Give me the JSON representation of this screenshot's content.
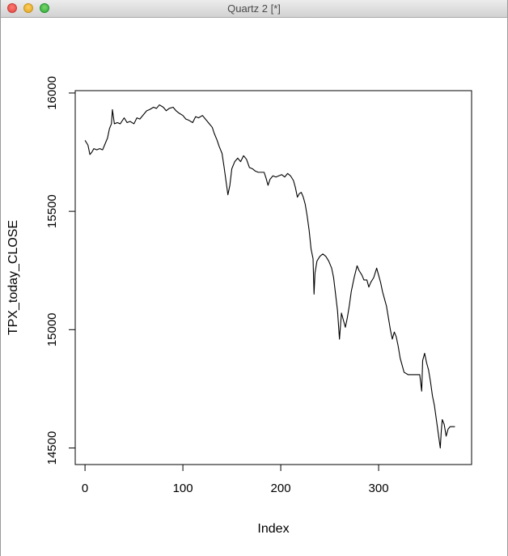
{
  "window": {
    "title": "Quartz 2 [*]"
  },
  "chart_data": {
    "type": "line",
    "xlabel": "Index",
    "ylabel": "TPX_today_CLOSE",
    "xlim": [
      -10,
      395
    ],
    "ylim": [
      14430,
      16010
    ],
    "x_ticks": [
      0,
      100,
      200,
      300
    ],
    "y_ticks": [
      14500,
      15000,
      15500,
      16000
    ],
    "grid": false,
    "series": [
      {
        "points": [
          [
            0,
            15800
          ],
          [
            3,
            15780
          ],
          [
            5,
            15740
          ],
          [
            7,
            15750
          ],
          [
            9,
            15765
          ],
          [
            12,
            15760
          ],
          [
            15,
            15765
          ],
          [
            18,
            15760
          ],
          [
            20,
            15780
          ],
          [
            23,
            15810
          ],
          [
            25,
            15850
          ],
          [
            27,
            15870
          ],
          [
            28,
            15930
          ],
          [
            30,
            15870
          ],
          [
            33,
            15875
          ],
          [
            36,
            15870
          ],
          [
            40,
            15895
          ],
          [
            43,
            15875
          ],
          [
            46,
            15880
          ],
          [
            50,
            15870
          ],
          [
            53,
            15895
          ],
          [
            56,
            15890
          ],
          [
            60,
            15910
          ],
          [
            63,
            15925
          ],
          [
            66,
            15930
          ],
          [
            70,
            15940
          ],
          [
            73,
            15935
          ],
          [
            76,
            15950
          ],
          [
            80,
            15940
          ],
          [
            83,
            15925
          ],
          [
            86,
            15935
          ],
          [
            90,
            15940
          ],
          [
            93,
            15925
          ],
          [
            96,
            15915
          ],
          [
            100,
            15905
          ],
          [
            103,
            15890
          ],
          [
            106,
            15885
          ],
          [
            110,
            15875
          ],
          [
            113,
            15900
          ],
          [
            116,
            15895
          ],
          [
            120,
            15905
          ],
          [
            123,
            15890
          ],
          [
            126,
            15875
          ],
          [
            130,
            15855
          ],
          [
            132,
            15830
          ],
          [
            135,
            15800
          ],
          [
            137,
            15775
          ],
          [
            140,
            15745
          ],
          [
            142,
            15690
          ],
          [
            144,
            15630
          ],
          [
            146,
            15570
          ],
          [
            148,
            15610
          ],
          [
            150,
            15680
          ],
          [
            153,
            15710
          ],
          [
            156,
            15725
          ],
          [
            159,
            15710
          ],
          [
            162,
            15735
          ],
          [
            165,
            15720
          ],
          [
            168,
            15685
          ],
          [
            171,
            15680
          ],
          [
            174,
            15670
          ],
          [
            177,
            15665
          ],
          [
            180,
            15665
          ],
          [
            183,
            15665
          ],
          [
            185,
            15640
          ],
          [
            187,
            15610
          ],
          [
            189,
            15635
          ],
          [
            192,
            15650
          ],
          [
            195,
            15645
          ],
          [
            198,
            15650
          ],
          [
            201,
            15655
          ],
          [
            204,
            15645
          ],
          [
            207,
            15660
          ],
          [
            210,
            15650
          ],
          [
            213,
            15630
          ],
          [
            215,
            15600
          ],
          [
            217,
            15560
          ],
          [
            219,
            15575
          ],
          [
            221,
            15580
          ],
          [
            223,
            15560
          ],
          [
            225,
            15530
          ],
          [
            227,
            15480
          ],
          [
            229,
            15420
          ],
          [
            231,
            15340
          ],
          [
            233,
            15300
          ],
          [
            234,
            15150
          ],
          [
            235,
            15240
          ],
          [
            237,
            15290
          ],
          [
            240,
            15310
          ],
          [
            243,
            15320
          ],
          [
            246,
            15310
          ],
          [
            249,
            15290
          ],
          [
            252,
            15260
          ],
          [
            254,
            15220
          ],
          [
            256,
            15150
          ],
          [
            258,
            15080
          ],
          [
            260,
            14960
          ],
          [
            262,
            15070
          ],
          [
            264,
            15040
          ],
          [
            266,
            15010
          ],
          [
            268,
            15050
          ],
          [
            270,
            15100
          ],
          [
            272,
            15160
          ],
          [
            275,
            15220
          ],
          [
            278,
            15270
          ],
          [
            280,
            15250
          ],
          [
            283,
            15230
          ],
          [
            285,
            15210
          ],
          [
            288,
            15210
          ],
          [
            290,
            15180
          ],
          [
            292,
            15200
          ],
          [
            295,
            15220
          ],
          [
            298,
            15260
          ],
          [
            300,
            15230
          ],
          [
            302,
            15200
          ],
          [
            304,
            15160
          ],
          [
            306,
            15130
          ],
          [
            308,
            15100
          ],
          [
            310,
            15050
          ],
          [
            312,
            15000
          ],
          [
            314,
            14960
          ],
          [
            316,
            14990
          ],
          [
            318,
            14970
          ],
          [
            320,
            14930
          ],
          [
            322,
            14880
          ],
          [
            324,
            14850
          ],
          [
            326,
            14820
          ],
          [
            330,
            14810
          ],
          [
            335,
            14810
          ],
          [
            340,
            14810
          ],
          [
            342,
            14810
          ],
          [
            344,
            14740
          ],
          [
            345,
            14870
          ],
          [
            347,
            14900
          ],
          [
            349,
            14860
          ],
          [
            351,
            14830
          ],
          [
            353,
            14780
          ],
          [
            355,
            14720
          ],
          [
            357,
            14680
          ],
          [
            359,
            14620
          ],
          [
            361,
            14560
          ],
          [
            363,
            14500
          ],
          [
            364,
            14570
          ],
          [
            365,
            14620
          ],
          [
            367,
            14600
          ],
          [
            369,
            14550
          ],
          [
            371,
            14580
          ],
          [
            373,
            14590
          ],
          [
            375,
            14590
          ],
          [
            378,
            14590
          ]
        ]
      }
    ]
  }
}
